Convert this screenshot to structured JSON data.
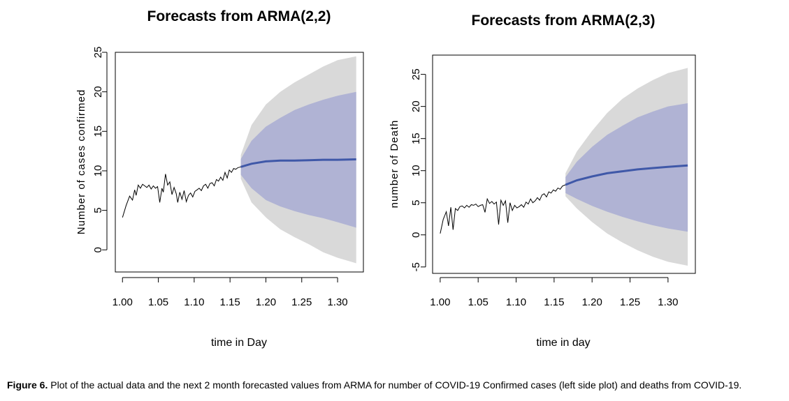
{
  "caption": {
    "label": "Figure 6.",
    "text": "Plot of the actual data and the next 2 month forecasted values from ARMA for number of COVID-19 Confirmed cases (left side plot) and deaths from COVID-19."
  },
  "colors": {
    "outer_band": "#d9d9d9",
    "inner_band": "#b0b3d4",
    "forecast_line": "#3f58a8",
    "history_line": "#000000"
  },
  "chart_data": [
    {
      "type": "line",
      "title": "Forecasts from ARMA(2,2)",
      "xlabel": "time in Day",
      "ylabel": "Number of cases confirmed",
      "xlim": [
        0.99,
        1.336
      ],
      "ylim": [
        -2.8,
        25
      ],
      "x_ticks": [
        1.0,
        1.05,
        1.1,
        1.15,
        1.2,
        1.25,
        1.3
      ],
      "x_tick_labels": [
        "1.00",
        "1.05",
        "1.10",
        "1.15",
        "1.20",
        "1.25",
        "1.30"
      ],
      "y_ticks": [
        0,
        5,
        10,
        15,
        20,
        25
      ],
      "y_tick_labels": [
        "0",
        "5",
        "10",
        "15",
        "20",
        "25"
      ],
      "history": {
        "x": [
          1.0,
          1.005,
          1.01,
          1.014,
          1.017,
          1.019,
          1.022,
          1.025,
          1.028,
          1.031,
          1.034,
          1.037,
          1.04,
          1.043,
          1.046,
          1.049,
          1.052,
          1.055,
          1.057,
          1.06,
          1.063,
          1.066,
          1.069,
          1.072,
          1.075,
          1.077,
          1.08,
          1.083,
          1.086,
          1.089,
          1.092,
          1.095,
          1.098,
          1.101,
          1.104,
          1.107,
          1.11,
          1.113,
          1.116,
          1.119,
          1.122,
          1.125,
          1.128,
          1.131,
          1.134,
          1.137,
          1.14,
          1.143,
          1.146,
          1.149,
          1.152,
          1.155,
          1.158,
          1.161,
          1.165
        ],
        "y": [
          4.1,
          5.6,
          6.8,
          6.3,
          7.6,
          6.9,
          8.2,
          7.8,
          8.3,
          8.1,
          7.9,
          8.2,
          7.7,
          8.1,
          7.8,
          8.0,
          6.0,
          7.8,
          7.3,
          9.6,
          8.2,
          8.6,
          7.0,
          7.9,
          7.1,
          6.0,
          7.3,
          6.4,
          7.5,
          6.1,
          6.9,
          7.2,
          6.7,
          7.4,
          7.6,
          7.8,
          7.5,
          8.1,
          8.3,
          7.8,
          8.4,
          8.5,
          8.1,
          8.9,
          8.7,
          9.2,
          8.8,
          9.8,
          9.1,
          10.1,
          9.8,
          10.3,
          10.2,
          10.4,
          10.5
        ]
      },
      "forecast": {
        "x": [
          1.165,
          1.18,
          1.2,
          1.22,
          1.24,
          1.26,
          1.28,
          1.3,
          1.326
        ],
        "mean": [
          10.5,
          10.9,
          11.2,
          11.3,
          11.3,
          11.35,
          11.4,
          11.4,
          11.45
        ],
        "lo80": [
          9.5,
          7.8,
          6.3,
          5.5,
          4.9,
          4.4,
          4.0,
          3.5,
          2.8
        ],
        "hi80": [
          11.5,
          13.8,
          15.6,
          16.7,
          17.7,
          18.4,
          19.0,
          19.5,
          20.0
        ],
        "lo95": [
          9.0,
          6.0,
          4.1,
          2.6,
          1.6,
          0.7,
          -0.3,
          -1.0,
          -1.7
        ],
        "hi95": [
          12.0,
          15.8,
          18.4,
          20.0,
          21.2,
          22.2,
          23.2,
          24.0,
          24.5
        ]
      }
    },
    {
      "type": "line",
      "title": "Forecasts from ARMA(2,3)",
      "xlabel": "time in day",
      "ylabel": "number of Death",
      "xlim": [
        0.99,
        1.336
      ],
      "ylim": [
        -6,
        28
      ],
      "x_ticks": [
        1.0,
        1.05,
        1.1,
        1.15,
        1.2,
        1.25,
        1.3
      ],
      "x_tick_labels": [
        "1.00",
        "1.05",
        "1.10",
        "1.15",
        "1.20",
        "1.25",
        "1.30"
      ],
      "y_ticks": [
        -5,
        0,
        5,
        10,
        15,
        20,
        25
      ],
      "y_tick_labels": [
        "-5",
        "0",
        "5",
        "10",
        "15",
        "20",
        "25"
      ],
      "history": {
        "x": [
          1.0,
          1.004,
          1.008,
          1.011,
          1.014,
          1.017,
          1.02,
          1.023,
          1.026,
          1.029,
          1.032,
          1.035,
          1.038,
          1.041,
          1.044,
          1.047,
          1.05,
          1.053,
          1.056,
          1.059,
          1.062,
          1.065,
          1.068,
          1.071,
          1.074,
          1.077,
          1.08,
          1.083,
          1.086,
          1.089,
          1.092,
          1.095,
          1.098,
          1.101,
          1.104,
          1.107,
          1.11,
          1.113,
          1.116,
          1.119,
          1.122,
          1.125,
          1.128,
          1.131,
          1.134,
          1.137,
          1.14,
          1.143,
          1.146,
          1.149,
          1.152,
          1.155,
          1.158,
          1.161,
          1.165
        ],
        "y": [
          0.2,
          2.4,
          3.6,
          1.4,
          4.3,
          0.8,
          4.1,
          3.8,
          4.4,
          4.5,
          4.2,
          4.6,
          4.3,
          4.7,
          4.6,
          4.8,
          4.4,
          4.6,
          4.7,
          3.5,
          5.6,
          4.9,
          5.2,
          4.8,
          5.1,
          1.6,
          5.4,
          4.6,
          5.3,
          1.9,
          5.0,
          3.8,
          4.6,
          4.2,
          4.4,
          4.7,
          4.3,
          5.1,
          4.8,
          5.6,
          5.0,
          5.3,
          5.8,
          5.4,
          6.2,
          6.4,
          5.9,
          6.7,
          6.5,
          7.0,
          6.8,
          7.3,
          7.1,
          7.6,
          7.8
        ]
      },
      "forecast": {
        "x": [
          1.165,
          1.18,
          1.2,
          1.22,
          1.24,
          1.26,
          1.28,
          1.3,
          1.326
        ],
        "mean": [
          7.8,
          8.5,
          9.1,
          9.6,
          9.9,
          10.2,
          10.4,
          10.6,
          10.8
        ],
        "lo80": [
          6.5,
          5.6,
          4.5,
          3.6,
          2.8,
          2.1,
          1.5,
          1.0,
          0.5
        ],
        "hi80": [
          9.0,
          11.4,
          13.7,
          15.6,
          17.0,
          18.3,
          19.2,
          20.0,
          20.5
        ],
        "lo95": [
          6.0,
          4.1,
          2.0,
          0.2,
          -1.2,
          -2.4,
          -3.4,
          -4.2,
          -4.8
        ],
        "hi95": [
          9.6,
          13.0,
          16.2,
          19.0,
          21.2,
          22.8,
          24.1,
          25.2,
          26.0
        ]
      }
    }
  ]
}
